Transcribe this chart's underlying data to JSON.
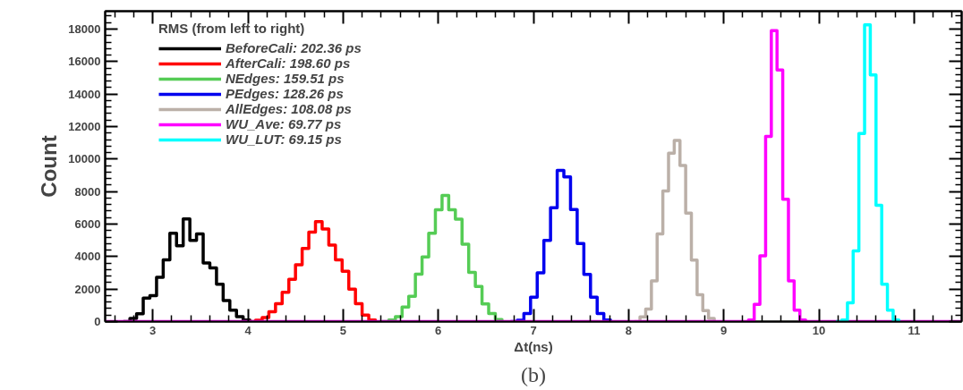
{
  "chart_data": {
    "type": "step",
    "xlabel": "Δt(ns)",
    "ylabel": "Count",
    "legend_title": "RMS (from left to right)",
    "annotations": [
      "(b)"
    ],
    "xlim": [
      2.5,
      11.5
    ],
    "ylim": [
      0,
      19100
    ],
    "xticks": [
      3,
      4,
      5,
      6,
      7,
      8,
      9,
      10,
      11
    ],
    "yticks": [
      0,
      2000,
      4000,
      6000,
      8000,
      10000,
      12000,
      14000,
      16000,
      18000
    ],
    "grid": false,
    "legend": "top left",
    "series": [
      {
        "name": "BeforeCali: 202.36 ps",
        "color": "#000000",
        "x": [
          2.69,
          2.76,
          2.83,
          2.9,
          2.97,
          3.04,
          3.11,
          3.18,
          3.25,
          3.32,
          3.39,
          3.46,
          3.53,
          3.6,
          3.67,
          3.74,
          3.81,
          3.88,
          3.95,
          4.02
        ],
        "values": [
          0,
          190,
          480,
          1450,
          1600,
          2730,
          3800,
          5440,
          4660,
          6310,
          5000,
          5400,
          3600,
          3300,
          2300,
          1300,
          700,
          300,
          100,
          0
        ]
      },
      {
        "name": "AfterCali: 198.60 ps",
        "color": "#ff0000",
        "x": [
          4.01,
          4.08,
          4.15,
          4.22,
          4.29,
          4.36,
          4.43,
          4.5,
          4.57,
          4.64,
          4.71,
          4.78,
          4.85,
          4.92,
          4.99,
          5.06,
          5.13,
          5.2,
          5.27,
          5.34
        ],
        "values": [
          0,
          80,
          250,
          600,
          1100,
          1800,
          2600,
          3500,
          4500,
          5500,
          6150,
          5700,
          4700,
          3800,
          3100,
          2000,
          1100,
          400,
          100,
          0
        ]
      },
      {
        "name": "NEdges: 159.51 ps",
        "color": "#55cc55",
        "x": [
          5.41,
          5.48,
          5.55,
          5.62,
          5.69,
          5.76,
          5.83,
          5.9,
          5.97,
          6.04,
          6.11,
          6.18,
          6.25,
          6.32,
          6.39,
          6.46,
          6.53,
          6.6,
          6.67
        ],
        "values": [
          0,
          100,
          300,
          890,
          1560,
          2920,
          3980,
          5430,
          6880,
          7760,
          6880,
          6300,
          4760,
          3030,
          2160,
          1090,
          500,
          120,
          0
        ]
      },
      {
        "name": "PEdges: 128.26 ps",
        "color": "#0000ee",
        "x": [
          6.76,
          6.83,
          6.9,
          6.97,
          7.04,
          7.11,
          7.18,
          7.25,
          7.32,
          7.39,
          7.46,
          7.53,
          7.6,
          7.67,
          7.74,
          7.81
        ],
        "values": [
          0,
          80,
          500,
          1500,
          3000,
          5000,
          7000,
          9300,
          8900,
          6900,
          4800,
          2900,
          1500,
          500,
          100,
          0
        ]
      },
      {
        "name": "AllEdges: 108.08 ps",
        "color": "#bbb0a8",
        "x": [
          8.06,
          8.12,
          8.18,
          8.24,
          8.3,
          8.36,
          8.42,
          8.48,
          8.54,
          8.6,
          8.66,
          8.72,
          8.78,
          8.84,
          8.9
        ],
        "values": [
          0,
          290,
          770,
          2500,
          5400,
          8040,
          10360,
          11150,
          9600,
          6680,
          3780,
          1650,
          680,
          190,
          0
        ]
      },
      {
        "name": "WU_Ave: 69.77 ps",
        "color": "#ff00ff",
        "x": [
          2.5,
          9.26,
          9.32,
          9.38,
          9.44,
          9.5,
          9.56,
          9.62,
          9.68,
          9.74,
          9.8,
          9.86,
          11.5
        ],
        "values": [
          0,
          100,
          1060,
          4050,
          11390,
          17900,
          15480,
          7530,
          2500,
          700,
          100,
          0,
          0
        ]
      },
      {
        "name": "WU_LUT: 69.15 ps",
        "color": "#00ffff",
        "x": [
          10.18,
          10.24,
          10.3,
          10.36,
          10.42,
          10.48,
          10.54,
          10.6,
          10.66,
          10.72,
          10.78,
          10.84
        ],
        "values": [
          0,
          100,
          1160,
          4350,
          11570,
          18260,
          15180,
          7150,
          2300,
          700,
          100,
          0
        ]
      }
    ]
  }
}
